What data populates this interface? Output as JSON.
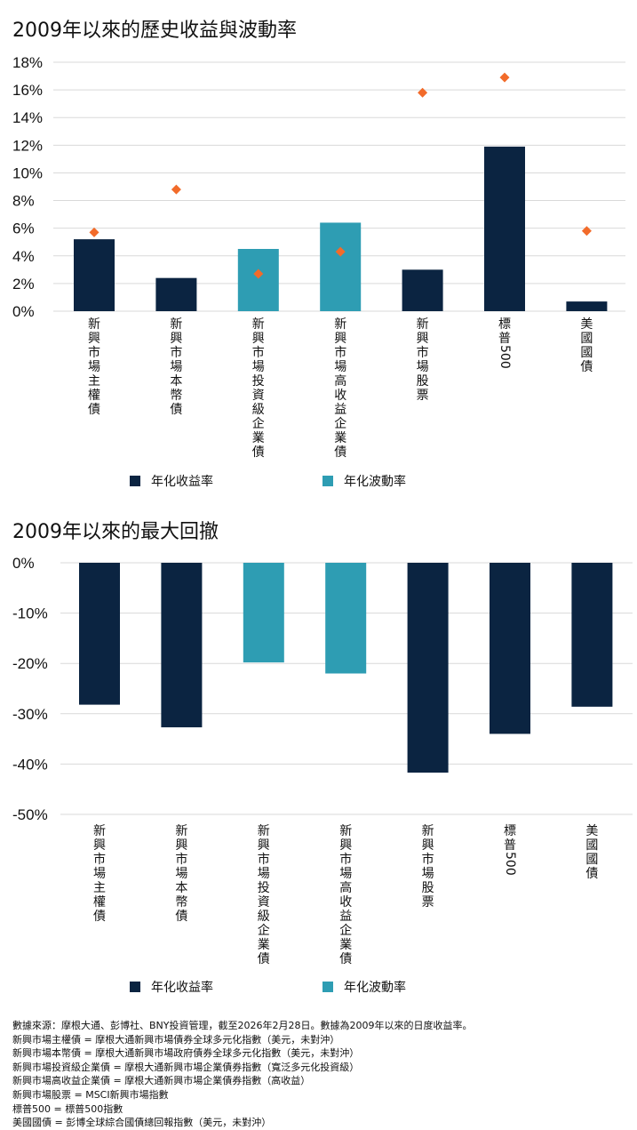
{
  "colors": {
    "dark": "#0b2441",
    "teal": "#2e9db3",
    "diamond": "#f26b2a",
    "grid": "#d9d9d9"
  },
  "chart_data": [
    {
      "type": "bar",
      "title": "2009年以來的歷史收益與波動率",
      "categories": [
        "新興市場主權債",
        "新興市場本幣債",
        "新興市場投資級企業債",
        "新興市場高收益企業債",
        "新興市場股票",
        "標普500",
        "美國國債"
      ],
      "series": [
        {
          "name": "年化收益率",
          "values": [
            5.2,
            2.4,
            4.5,
            6.4,
            3.0,
            11.9,
            0.7
          ],
          "highlight": [
            false,
            false,
            true,
            true,
            false,
            false,
            false
          ]
        },
        {
          "name": "年化波動率",
          "values": [
            5.7,
            8.8,
            2.7,
            4.3,
            15.8,
            16.9,
            5.8
          ],
          "marker": "diamond"
        }
      ],
      "ylim": [
        0,
        18
      ],
      "yticks": [
        "0%",
        "2%",
        "4%",
        "6%",
        "8%",
        "10%",
        "12%",
        "14%",
        "16%",
        "18%"
      ],
      "legend": "bottom",
      "legend_entries": [
        "年化收益率",
        "年化波動率"
      ]
    },
    {
      "type": "bar",
      "title": "2009年以來的最大回撤",
      "categories": [
        "新興市場主權債",
        "新興市場本幣債",
        "新興市場投資級企業債",
        "新興市場高收益企業債",
        "新興市場股票",
        "標普500",
        "美國國債"
      ],
      "series": [
        {
          "name": "最大回撤",
          "values": [
            -28.2,
            -32.7,
            -19.8,
            -22.0,
            -41.7,
            -34.0,
            -28.6
          ],
          "highlight": [
            false,
            false,
            true,
            true,
            false,
            false,
            false
          ]
        }
      ],
      "ylim": [
        -50,
        0
      ],
      "yticks": [
        "0%",
        "-10%",
        "-20%",
        "-30%",
        "-40%",
        "-50%"
      ],
      "legend": "bottom",
      "legend_entries": [
        "年化收益率",
        "年化波動率"
      ]
    }
  ],
  "notes": [
    "數據來源：摩根大通、彭博社、BNY投資管理，截至2026年2月28日。數據為2009年以來的日度收益率。",
    "新興市場主權債 = 摩根大通新興市場債券全球多元化指數（美元，未對沖）",
    "新興市場本幣債 = 摩根大通新興市場政府債券全球多元化指數（美元，未對沖）",
    "新興市場投資級企業債 = 摩根大通新興市場企業債券指數（寬泛多元化投資級）",
    "新興市場高收益企業債 = 摩根大通新興市場企業債券指數（高收益）",
    "新興市場股票 = MSCI新興市場指數",
    "標普500 = 標普500指數",
    "美國國債 = 彭博全球綜合國債總回報指數（美元，未對沖）"
  ]
}
